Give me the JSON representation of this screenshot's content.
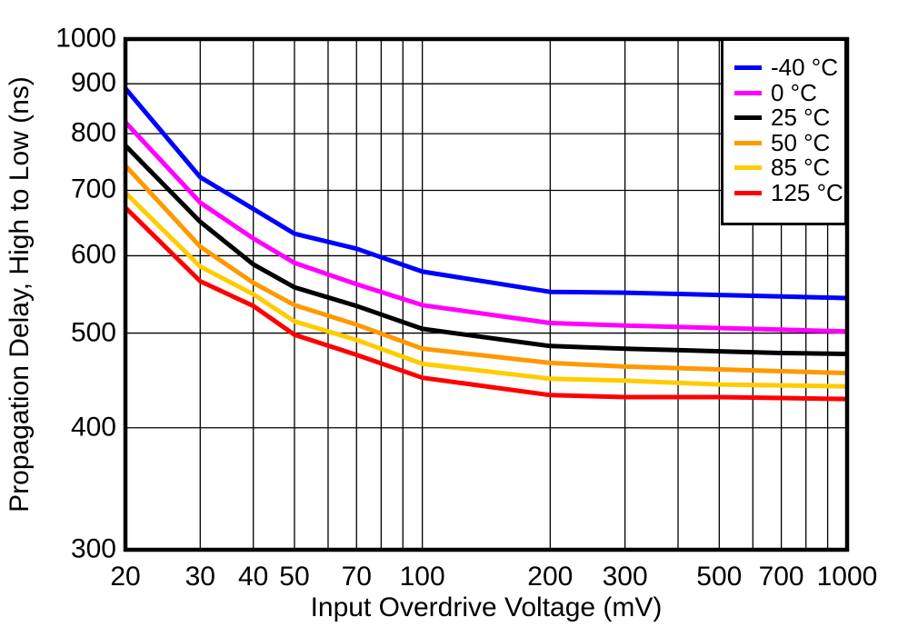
{
  "chart_data": {
    "type": "line",
    "xlabel": "Input Overdrive Voltage (mV)",
    "ylabel": "Propagation Delay, High to Low (ns)",
    "x_scale": "log",
    "y_scale": "log",
    "xlim": [
      20,
      1000
    ],
    "ylim": [
      300,
      1000
    ],
    "grid": true,
    "legend_position": "top-right",
    "x": [
      20,
      30,
      40,
      50,
      70,
      100,
      200,
      300,
      500,
      700,
      1000
    ],
    "x_tick_labels": [
      "20",
      "30",
      "40",
      "50",
      "70",
      "100",
      "200",
      "300",
      "500",
      "700",
      "1000"
    ],
    "x_tick_values": [
      20,
      30,
      40,
      50,
      70,
      100,
      200,
      300,
      500,
      700,
      1000
    ],
    "y_tick_labels": [
      "1000",
      "900",
      "800",
      "700",
      "600",
      "500",
      "400",
      "300"
    ],
    "y_tick_values": [
      1000,
      900,
      800,
      700,
      600,
      500,
      400,
      300
    ],
    "x_gridlines": [
      30,
      40,
      50,
      60,
      70,
      80,
      90,
      100,
      200,
      300,
      400,
      500,
      600,
      700,
      800,
      900
    ],
    "y_gridlines": [
      400,
      500,
      600,
      700,
      800,
      900
    ],
    "axis_color": "#000000",
    "grid_color": "#000000",
    "series": [
      {
        "name": "-40 °C",
        "color": "#0000FF",
        "values": [
          890,
          722,
          670,
          632,
          610,
          578,
          551,
          550,
          547,
          545,
          543
        ]
      },
      {
        "name": "0 °C",
        "color": "#FF00FF",
        "values": [
          822,
          680,
          625,
          590,
          561,
          534,
          512,
          509,
          506,
          504,
          502
        ]
      },
      {
        "name": "25 °C",
        "color": "#000000",
        "values": [
          778,
          650,
          588,
          557,
          533,
          505,
          485,
          482,
          479,
          477,
          476
        ]
      },
      {
        "name": "50 °C",
        "color": "#FF9900",
        "values": [
          742,
          613,
          563,
          534,
          510,
          482,
          466,
          462,
          459,
          457,
          455
        ]
      },
      {
        "name": "85 °C",
        "color": "#FFCC00",
        "values": [
          696,
          585,
          548,
          514,
          492,
          465,
          449,
          447,
          443,
          442,
          441
        ]
      },
      {
        "name": "125 °C",
        "color": "#FF0000",
        "values": [
          672,
          565,
          533,
          498,
          475,
          450,
          432,
          430,
          430,
          429,
          428
        ]
      }
    ]
  }
}
